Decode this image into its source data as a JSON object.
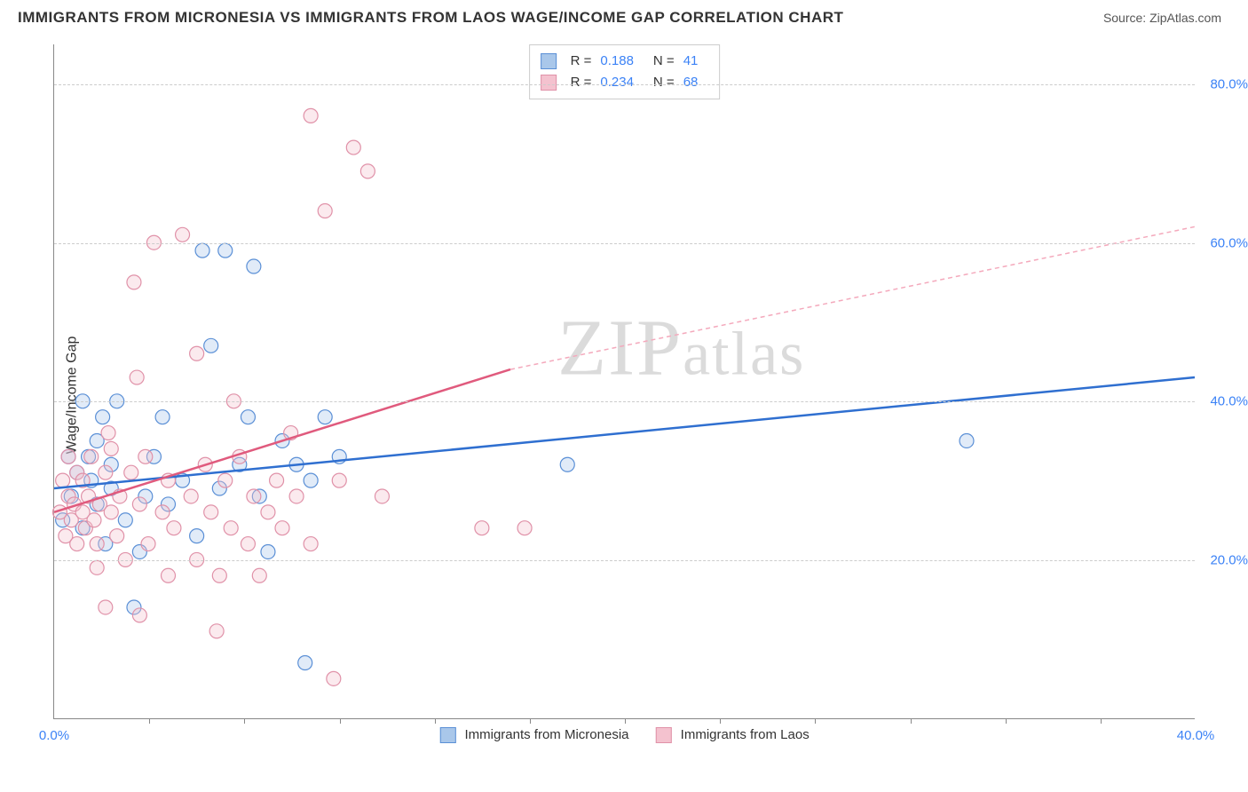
{
  "header": {
    "title": "IMMIGRANTS FROM MICRONESIA VS IMMIGRANTS FROM LAOS WAGE/INCOME GAP CORRELATION CHART",
    "source_label": "Source: ZipAtlas.com"
  },
  "chart": {
    "type": "scatter",
    "ylabel": "Wage/Income Gap",
    "watermark": "ZIPatlas",
    "xlim": [
      0,
      40
    ],
    "ylim": [
      0,
      85
    ],
    "y_ticks": [
      {
        "value": 20,
        "label": "20.0%"
      },
      {
        "value": 40,
        "label": "40.0%"
      },
      {
        "value": 60,
        "label": "60.0%"
      },
      {
        "value": 80,
        "label": "80.0%"
      }
    ],
    "x_ticks": [
      {
        "value": 0,
        "label": "0.0%"
      },
      {
        "value": 40,
        "label": "40.0%"
      }
    ],
    "x_minor_ticks": [
      3.33,
      6.67,
      10,
      13.33,
      16.67,
      20,
      23.33,
      26.67,
      30,
      33.33,
      36.67
    ],
    "background_color": "#ffffff",
    "grid_color": "#cccccc",
    "axis_color": "#888888",
    "tick_label_color": "#3b82f6",
    "marker_radius": 8,
    "marker_stroke_width": 1.2,
    "marker_fill_opacity": 0.35,
    "series": [
      {
        "id": "micronesia",
        "label": "Immigrants from Micronesia",
        "color_stroke": "#5a8fd6",
        "color_fill": "#a9c7ea",
        "r_value": "0.188",
        "n_value": "41",
        "trend": {
          "x1": 0,
          "y1": 29,
          "x2": 40,
          "y2": 43,
          "color": "#2f6fd0",
          "width": 2.5,
          "dash": "none"
        },
        "points": [
          {
            "x": 0.3,
            "y": 25
          },
          {
            "x": 0.5,
            "y": 33
          },
          {
            "x": 0.6,
            "y": 28
          },
          {
            "x": 0.8,
            "y": 31
          },
          {
            "x": 1.0,
            "y": 24
          },
          {
            "x": 1.0,
            "y": 40
          },
          {
            "x": 1.2,
            "y": 33
          },
          {
            "x": 1.3,
            "y": 30
          },
          {
            "x": 1.5,
            "y": 27
          },
          {
            "x": 1.5,
            "y": 35
          },
          {
            "x": 1.8,
            "y": 22
          },
          {
            "x": 2.0,
            "y": 32
          },
          {
            "x": 2.0,
            "y": 29
          },
          {
            "x": 2.2,
            "y": 40
          },
          {
            "x": 2.5,
            "y": 25
          },
          {
            "x": 2.8,
            "y": 14
          },
          {
            "x": 3.0,
            "y": 21
          },
          {
            "x": 3.2,
            "y": 28
          },
          {
            "x": 3.5,
            "y": 33
          },
          {
            "x": 3.8,
            "y": 38
          },
          {
            "x": 4.0,
            "y": 27
          },
          {
            "x": 4.5,
            "y": 30
          },
          {
            "x": 5.0,
            "y": 23
          },
          {
            "x": 5.2,
            "y": 59
          },
          {
            "x": 5.5,
            "y": 47
          },
          {
            "x": 5.8,
            "y": 29
          },
          {
            "x": 6.0,
            "y": 59
          },
          {
            "x": 6.5,
            "y": 32
          },
          {
            "x": 6.8,
            "y": 38
          },
          {
            "x": 7.0,
            "y": 57
          },
          {
            "x": 7.2,
            "y": 28
          },
          {
            "x": 7.5,
            "y": 21
          },
          {
            "x": 8.0,
            "y": 35
          },
          {
            "x": 8.5,
            "y": 32
          },
          {
            "x": 8.8,
            "y": 7
          },
          {
            "x": 9.0,
            "y": 30
          },
          {
            "x": 9.5,
            "y": 38
          },
          {
            "x": 10.0,
            "y": 33
          },
          {
            "x": 18.0,
            "y": 32
          },
          {
            "x": 32.0,
            "y": 35
          },
          {
            "x": 1.7,
            "y": 38
          }
        ]
      },
      {
        "id": "laos",
        "label": "Immigrants from Laos",
        "color_stroke": "#e091a8",
        "color_fill": "#f4c2cf",
        "r_value": "0.234",
        "n_value": "68",
        "trend_solid": {
          "x1": 0,
          "y1": 26,
          "x2": 16,
          "y2": 44,
          "color": "#e05a7d",
          "width": 2.5
        },
        "trend_dashed": {
          "x1": 16,
          "y1": 44,
          "x2": 40,
          "y2": 62,
          "color": "#f4a9bc",
          "width": 1.5,
          "dash": "5,4"
        },
        "points": [
          {
            "x": 0.2,
            "y": 26
          },
          {
            "x": 0.3,
            "y": 30
          },
          {
            "x": 0.4,
            "y": 23
          },
          {
            "x": 0.5,
            "y": 28
          },
          {
            "x": 0.5,
            "y": 33
          },
          {
            "x": 0.6,
            "y": 25
          },
          {
            "x": 0.7,
            "y": 27
          },
          {
            "x": 0.8,
            "y": 31
          },
          {
            "x": 0.8,
            "y": 22
          },
          {
            "x": 1.0,
            "y": 26
          },
          {
            "x": 1.0,
            "y": 30
          },
          {
            "x": 1.1,
            "y": 24
          },
          {
            "x": 1.2,
            "y": 28
          },
          {
            "x": 1.3,
            "y": 33
          },
          {
            "x": 1.4,
            "y": 25
          },
          {
            "x": 1.5,
            "y": 22
          },
          {
            "x": 1.5,
            "y": 19
          },
          {
            "x": 1.6,
            "y": 27
          },
          {
            "x": 1.8,
            "y": 31
          },
          {
            "x": 1.8,
            "y": 14
          },
          {
            "x": 2.0,
            "y": 26
          },
          {
            "x": 2.0,
            "y": 34
          },
          {
            "x": 2.2,
            "y": 23
          },
          {
            "x": 2.3,
            "y": 28
          },
          {
            "x": 2.5,
            "y": 20
          },
          {
            "x": 2.7,
            "y": 31
          },
          {
            "x": 2.8,
            "y": 55
          },
          {
            "x": 3.0,
            "y": 27
          },
          {
            "x": 3.0,
            "y": 13
          },
          {
            "x": 3.2,
            "y": 33
          },
          {
            "x": 3.3,
            "y": 22
          },
          {
            "x": 3.5,
            "y": 60
          },
          {
            "x": 3.8,
            "y": 26
          },
          {
            "x": 4.0,
            "y": 30
          },
          {
            "x": 4.0,
            "y": 18
          },
          {
            "x": 4.2,
            "y": 24
          },
          {
            "x": 4.5,
            "y": 61
          },
          {
            "x": 4.8,
            "y": 28
          },
          {
            "x": 5.0,
            "y": 46
          },
          {
            "x": 5.0,
            "y": 20
          },
          {
            "x": 5.3,
            "y": 32
          },
          {
            "x": 5.5,
            "y": 26
          },
          {
            "x": 5.8,
            "y": 18
          },
          {
            "x": 6.0,
            "y": 30
          },
          {
            "x": 6.2,
            "y": 24
          },
          {
            "x": 6.5,
            "y": 33
          },
          {
            "x": 6.8,
            "y": 22
          },
          {
            "x": 7.0,
            "y": 28
          },
          {
            "x": 7.2,
            "y": 18
          },
          {
            "x": 7.5,
            "y": 26
          },
          {
            "x": 7.8,
            "y": 30
          },
          {
            "x": 8.0,
            "y": 24
          },
          {
            "x": 8.3,
            "y": 36
          },
          {
            "x": 8.5,
            "y": 28
          },
          {
            "x": 9.0,
            "y": 76
          },
          {
            "x": 9.0,
            "y": 22
          },
          {
            "x": 9.5,
            "y": 64
          },
          {
            "x": 9.8,
            "y": 5
          },
          {
            "x": 10.0,
            "y": 30
          },
          {
            "x": 10.5,
            "y": 72
          },
          {
            "x": 11.0,
            "y": 69
          },
          {
            "x": 11.5,
            "y": 28
          },
          {
            "x": 5.7,
            "y": 11
          },
          {
            "x": 6.3,
            "y": 40
          },
          {
            "x": 15.0,
            "y": 24
          },
          {
            "x": 16.5,
            "y": 24
          },
          {
            "x": 1.9,
            "y": 36
          },
          {
            "x": 2.9,
            "y": 43
          }
        ]
      }
    ],
    "legend_stats_labels": {
      "r": "R  =",
      "n": "N  ="
    }
  }
}
